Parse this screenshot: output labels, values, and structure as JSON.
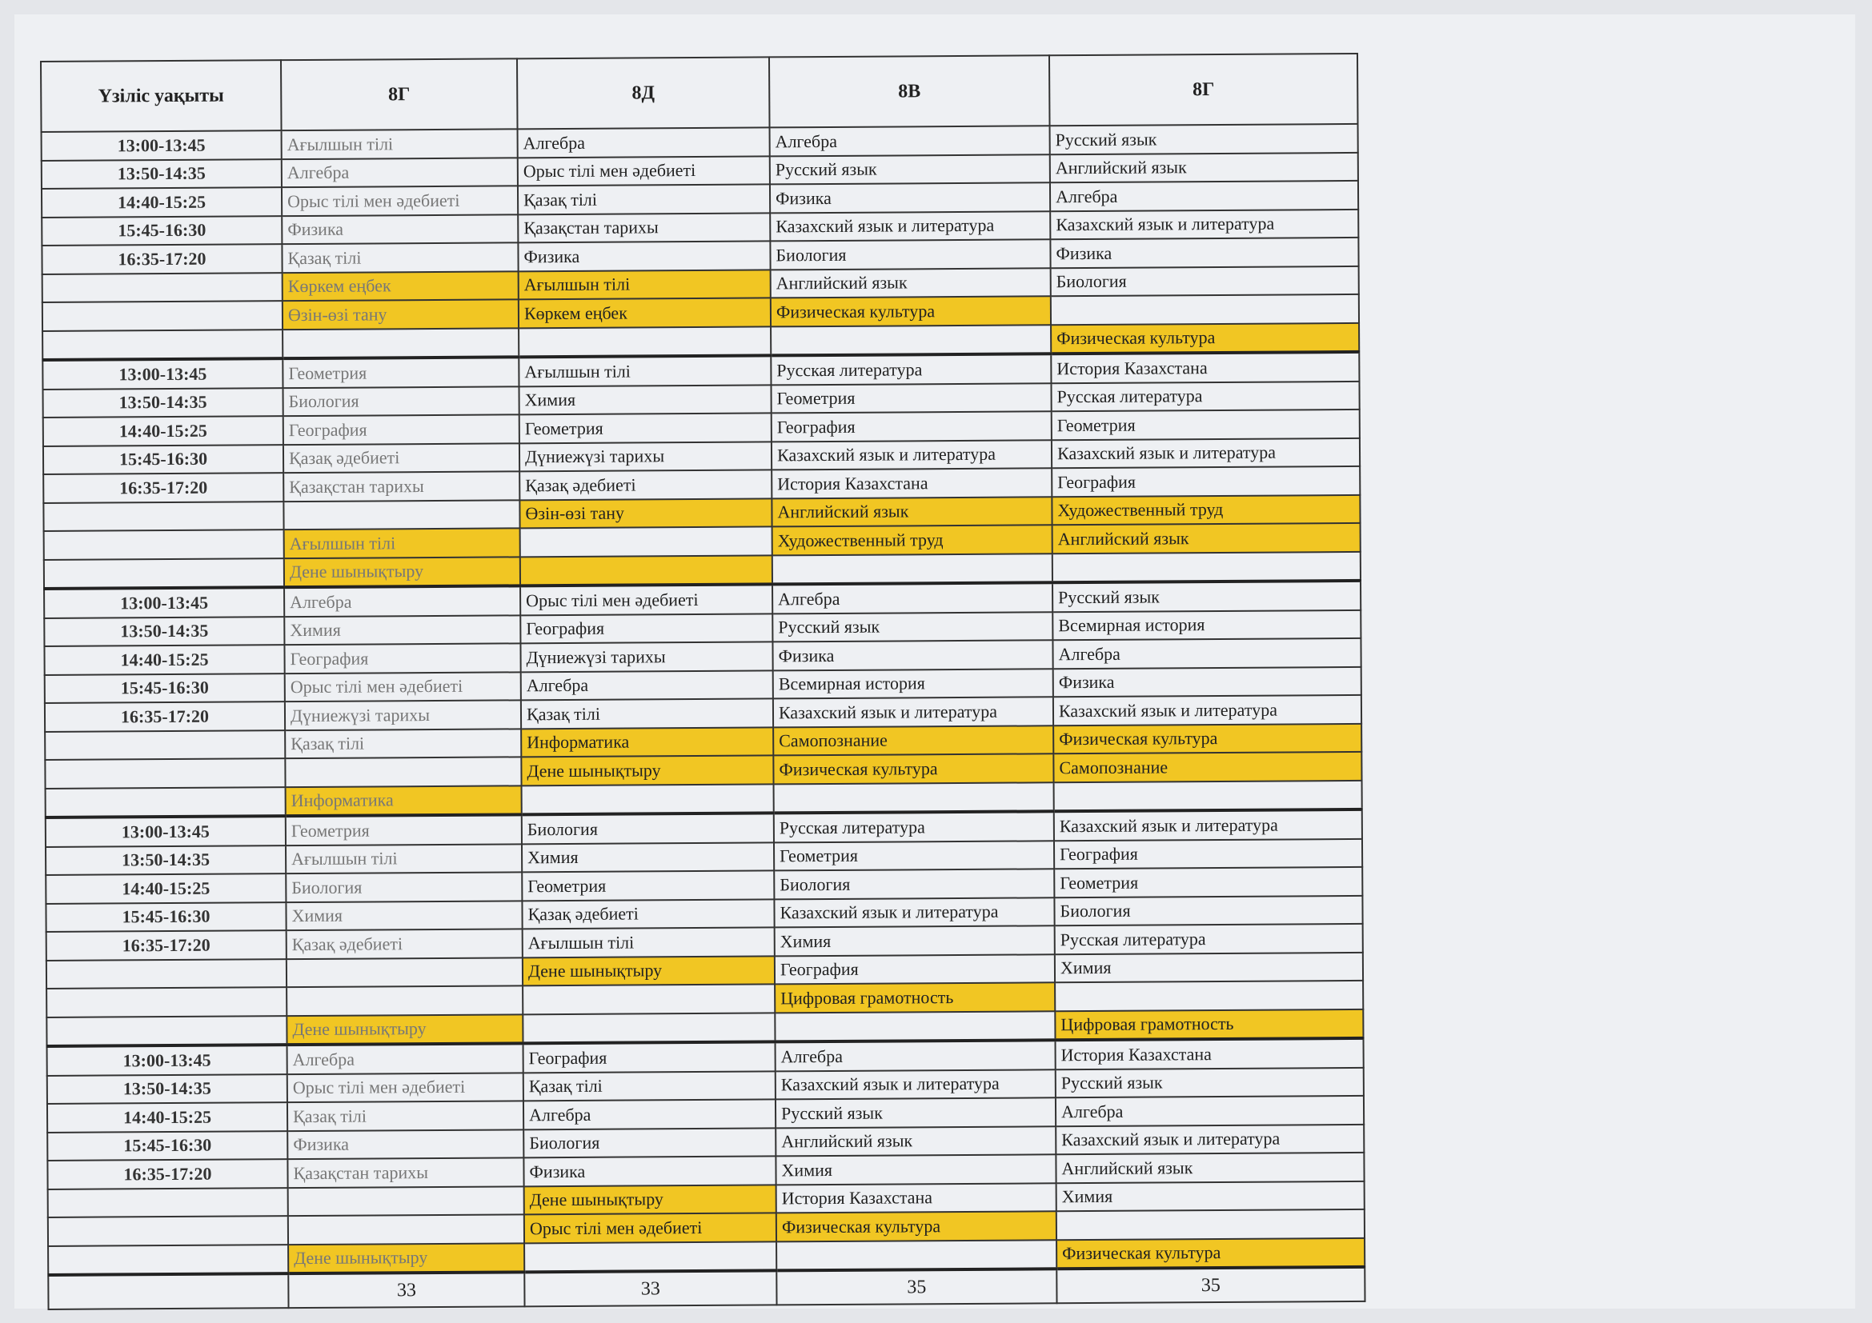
{
  "colors": {
    "highlight": "#f1c623"
  },
  "headers": [
    "Үзіліс уақыты",
    "8Г",
    "8Д",
    "8В",
    "8Г"
  ],
  "blocks": [
    {
      "rows": [
        {
          "time": "13:00-13:45",
          "cells": [
            [
              "Ағылшын тілі",
              0
            ],
            [
              "Алгебра",
              0
            ],
            [
              "Алгебра",
              0
            ],
            [
              "Русский язык",
              0
            ]
          ]
        },
        {
          "time": "13:50-14:35",
          "cells": [
            [
              "Алгебра",
              0
            ],
            [
              "Орыс тілі мен әдебиеті",
              0
            ],
            [
              "Русский язык",
              0
            ],
            [
              "Английский язык",
              0
            ]
          ]
        },
        {
          "time": "14:40-15:25",
          "cells": [
            [
              "Орыс тілі мен әдебиеті",
              0
            ],
            [
              "Қазақ тілі",
              0
            ],
            [
              "Физика",
              0
            ],
            [
              "Алгебра",
              0
            ]
          ]
        },
        {
          "time": "15:45-16:30",
          "cells": [
            [
              "Физика",
              0
            ],
            [
              "Қазақстан тарихы",
              0
            ],
            [
              "Казахский язык и литература",
              0
            ],
            [
              "Казахский язык и литература",
              0
            ]
          ]
        },
        {
          "time": "16:35-17:20",
          "cells": [
            [
              "Қазақ тілі",
              0
            ],
            [
              "Физика",
              0
            ],
            [
              "Биология",
              0
            ],
            [
              "Физика",
              0
            ]
          ]
        },
        {
          "time": "",
          "cells": [
            [
              "Көркем еңбек",
              1
            ],
            [
              "Ағылшын тілі",
              1
            ],
            [
              "Английский язык",
              0
            ],
            [
              "Биология",
              0
            ]
          ]
        },
        {
          "time": "",
          "cells": [
            [
              "Өзін-өзі тану",
              1
            ],
            [
              "Көркем еңбек",
              1
            ],
            [
              "Физическая культура",
              1
            ],
            [
              "",
              0
            ]
          ]
        },
        {
          "time": "",
          "cells": [
            [
              "",
              0
            ],
            [
              "",
              0
            ],
            [
              "",
              0
            ],
            [
              "Физическая культура",
              1
            ]
          ]
        }
      ]
    },
    {
      "rows": [
        {
          "time": "13:00-13:45",
          "cells": [
            [
              "Геометрия",
              0
            ],
            [
              "Ағылшын тілі",
              0
            ],
            [
              "Русская литература",
              0
            ],
            [
              "История Казахстана",
              0
            ]
          ]
        },
        {
          "time": "13:50-14:35",
          "cells": [
            [
              "Биология",
              0
            ],
            [
              "Химия",
              0
            ],
            [
              "Геометрия",
              0
            ],
            [
              "Русская литература",
              0
            ]
          ]
        },
        {
          "time": "14:40-15:25",
          "cells": [
            [
              "География",
              0
            ],
            [
              "Геометрия",
              0
            ],
            [
              "География",
              0
            ],
            [
              "Геометрия",
              0
            ]
          ]
        },
        {
          "time": "15:45-16:30",
          "cells": [
            [
              "Қазақ әдебиеті",
              0
            ],
            [
              "Дүниежүзі тарихы",
              0
            ],
            [
              "Казахский язык и литература",
              0
            ],
            [
              "Казахский язык и литература",
              0
            ]
          ]
        },
        {
          "time": "16:35-17:20",
          "cells": [
            [
              "Қазақстан тарихы",
              0
            ],
            [
              "Қазақ әдебиеті",
              0
            ],
            [
              "История Казахстана",
              0
            ],
            [
              "География",
              0
            ]
          ]
        },
        {
          "time": "",
          "cells": [
            [
              "",
              0
            ],
            [
              "Өзін-өзі тану",
              1
            ],
            [
              "Английский язык",
              1
            ],
            [
              "Художественный труд",
              1
            ]
          ]
        },
        {
          "time": "",
          "cells": [
            [
              "Ағылшын тілі",
              1
            ],
            [
              "",
              0
            ],
            [
              "Художественный труд",
              1
            ],
            [
              "Английский язык",
              1
            ]
          ]
        },
        {
          "time": "",
          "cells": [
            [
              "Дене шынықтыру",
              1
            ],
            [
              "",
              1
            ],
            [
              "",
              0
            ],
            [
              "",
              0
            ]
          ]
        }
      ]
    },
    {
      "rows": [
        {
          "time": "13:00-13:45",
          "cells": [
            [
              "Алгебра",
              0
            ],
            [
              "Орыс тілі мен әдебиеті",
              0
            ],
            [
              "Алгебра",
              0
            ],
            [
              "Русский язык",
              0
            ]
          ]
        },
        {
          "time": "13:50-14:35",
          "cells": [
            [
              "Химия",
              0
            ],
            [
              "География",
              0
            ],
            [
              "Русский язык",
              0
            ],
            [
              "Всемирная история",
              0
            ]
          ]
        },
        {
          "time": "14:40-15:25",
          "cells": [
            [
              "География",
              0
            ],
            [
              "Дүниежүзі тарихы",
              0
            ],
            [
              "Физика",
              0
            ],
            [
              "Алгебра",
              0
            ]
          ]
        },
        {
          "time": "15:45-16:30",
          "cells": [
            [
              "Орыс тілі мен әдебиеті",
              0
            ],
            [
              "Алгебра",
              0
            ],
            [
              "Всемирная история",
              0
            ],
            [
              "Физика",
              0
            ]
          ]
        },
        {
          "time": "16:35-17:20",
          "cells": [
            [
              "Дүниежүзі тарихы",
              0
            ],
            [
              "Қазақ тілі",
              0
            ],
            [
              "Казахский язык и литература",
              0
            ],
            [
              "Казахский язык и литература",
              0
            ]
          ]
        },
        {
          "time": "",
          "cells": [
            [
              "Қазақ тілі",
              0
            ],
            [
              "Информатика",
              1
            ],
            [
              "Самопознание",
              1
            ],
            [
              "Физическая культура",
              1
            ]
          ]
        },
        {
          "time": "",
          "cells": [
            [
              "",
              0
            ],
            [
              "Дене шынықтыру",
              1
            ],
            [
              "Физическая культура",
              1
            ],
            [
              "Самопознание",
              1
            ]
          ]
        },
        {
          "time": "",
          "cells": [
            [
              "Информатика",
              1
            ],
            [
              "",
              0
            ],
            [
              "",
              0
            ],
            [
              "",
              0
            ]
          ]
        }
      ]
    },
    {
      "rows": [
        {
          "time": "13:00-13:45",
          "cells": [
            [
              "Геометрия",
              0
            ],
            [
              "Биология",
              0
            ],
            [
              "Русская литература",
              0
            ],
            [
              "Казахский язык и литература",
              0
            ]
          ]
        },
        {
          "time": "13:50-14:35",
          "cells": [
            [
              "Ағылшын тілі",
              0
            ],
            [
              "Химия",
              0
            ],
            [
              "Геометрия",
              0
            ],
            [
              "География",
              0
            ]
          ]
        },
        {
          "time": "14:40-15:25",
          "cells": [
            [
              "Биология",
              0
            ],
            [
              "Геометрия",
              0
            ],
            [
              "Биология",
              0
            ],
            [
              "Геометрия",
              0
            ]
          ]
        },
        {
          "time": "15:45-16:30",
          "cells": [
            [
              "Химия",
              0
            ],
            [
              "Қазақ әдебиеті",
              0
            ],
            [
              "Казахский язык и литература",
              0
            ],
            [
              "Биология",
              0
            ]
          ]
        },
        {
          "time": "16:35-17:20",
          "cells": [
            [
              "Қазақ әдебиеті",
              0
            ],
            [
              "Ағылшын тілі",
              0
            ],
            [
              "Химия",
              0
            ],
            [
              "Русская литература",
              0
            ]
          ]
        },
        {
          "time": "",
          "cells": [
            [
              "",
              0
            ],
            [
              "Дене шынықтыру",
              1
            ],
            [
              "География",
              0
            ],
            [
              "Химия",
              0
            ]
          ]
        },
        {
          "time": "",
          "cells": [
            [
              "",
              0
            ],
            [
              "",
              0
            ],
            [
              "Цифровая грамотность",
              1
            ],
            [
              "",
              0
            ]
          ]
        },
        {
          "time": "",
          "cells": [
            [
              "Дене шынықтыру",
              1
            ],
            [
              "",
              0
            ],
            [
              "",
              0
            ],
            [
              "Цифровая грамотность",
              1
            ]
          ]
        }
      ]
    },
    {
      "rows": [
        {
          "time": "13:00-13:45",
          "cells": [
            [
              "Алгебра",
              0
            ],
            [
              "География",
              0
            ],
            [
              "Алгебра",
              0
            ],
            [
              "История Казахстана",
              0
            ]
          ]
        },
        {
          "time": "13:50-14:35",
          "cells": [
            [
              "Орыс тілі мен әдебиеті",
              0
            ],
            [
              "Қазақ тілі",
              0
            ],
            [
              "Казахский язык и литература",
              0
            ],
            [
              "Русский язык",
              0
            ]
          ]
        },
        {
          "time": "14:40-15:25",
          "cells": [
            [
              "Қазақ тілі",
              0
            ],
            [
              "Алгебра",
              0
            ],
            [
              "Русский язык",
              0
            ],
            [
              "Алгебра",
              0
            ]
          ]
        },
        {
          "time": "15:45-16:30",
          "cells": [
            [
              "Физика",
              0
            ],
            [
              "Биология",
              0
            ],
            [
              "Английский язык",
              0
            ],
            [
              "Казахский язык и литература",
              0
            ]
          ]
        },
        {
          "time": "16:35-17:20",
          "cells": [
            [
              "Қазақстан тарихы",
              0
            ],
            [
              "Физика",
              0
            ],
            [
              "Химия",
              0
            ],
            [
              "Английский язык",
              0
            ]
          ]
        },
        {
          "time": "",
          "cells": [
            [
              "",
              0
            ],
            [
              "Дене шынықтыру",
              1
            ],
            [
              "История Казахстана",
              0
            ],
            [
              "Химия",
              0
            ]
          ]
        },
        {
          "time": "",
          "cells": [
            [
              "",
              0
            ],
            [
              "Орыс тілі мен әдебиеті",
              1
            ],
            [
              "Физическая культура",
              1
            ],
            [
              "",
              0
            ]
          ]
        },
        {
          "time": "",
          "cells": [
            [
              "Дене шынықтыру",
              1
            ],
            [
              "",
              0
            ],
            [
              "",
              0
            ],
            [
              "Физическая культура",
              1
            ]
          ]
        }
      ]
    }
  ],
  "totals": [
    "",
    "33",
    "33",
    "35",
    "35"
  ]
}
